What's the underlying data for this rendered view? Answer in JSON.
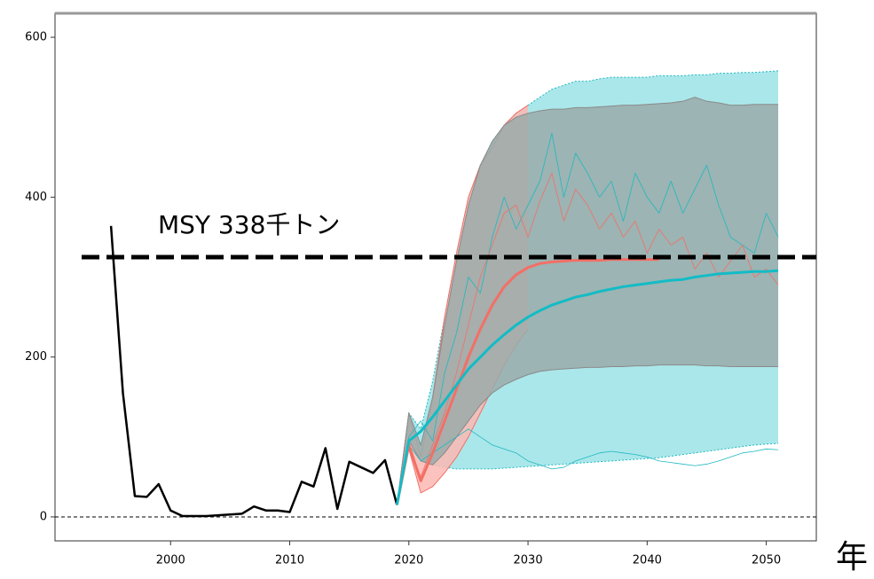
{
  "chart_data": {
    "type": "line",
    "annotation": "MSY 338千トン",
    "xlabel": "年",
    "xlim": [
      1990.3,
      2054.2
    ],
    "ylim": [
      -30,
      630
    ],
    "xticks": [
      2000,
      2010,
      2020,
      2030,
      2040,
      2050
    ],
    "yticks": [
      0,
      200,
      400,
      600
    ],
    "reference_line": 325,
    "zero_line": 0,
    "bands": [
      {
        "color": "#9be3e6",
        "edge": "#1fb8c0",
        "x": [
          2019,
          2020,
          2021,
          2022,
          2023,
          2024,
          2025,
          2026,
          2027,
          2028,
          2029,
          2030,
          2031,
          2032,
          2033,
          2034,
          2035,
          2036,
          2037,
          2038,
          2039,
          2040,
          2041,
          2042,
          2043,
          2044,
          2045,
          2046,
          2047,
          2048,
          2049,
          2050,
          2051
        ],
        "upper": [
          15,
          130,
          110,
          170,
          250,
          330,
          400,
          440,
          470,
          490,
          505,
          515,
          525,
          535,
          540,
          545,
          545,
          548,
          550,
          550,
          550,
          550,
          552,
          552,
          552,
          553,
          553,
          555,
          555,
          556,
          556,
          557,
          558
        ],
        "lower": [
          15,
          95,
          70,
          65,
          62,
          60,
          60,
          60,
          60,
          61,
          62,
          63,
          64,
          65,
          66,
          67,
          68,
          69,
          70,
          71,
          72,
          73,
          74,
          76,
          78,
          80,
          82,
          84,
          86,
          88,
          90,
          91,
          92
        ]
      },
      {
        "color": "#fbb8b3",
        "edge": "#f36f66",
        "x": [
          2019,
          2020,
          2021,
          2022,
          2023,
          2024,
          2025,
          2026,
          2027,
          2028,
          2029,
          2030
        ],
        "upper": [
          15,
          130,
          75,
          150,
          250,
          330,
          400,
          440,
          462,
          490,
          505,
          515
        ],
        "lower": [
          15,
          85,
          30,
          38,
          55,
          75,
          100,
          130,
          160,
          190,
          215,
          235
        ]
      },
      {
        "color": "#9aaaa9",
        "edge": "#8a8a8a",
        "x": [
          2019,
          2020,
          2021,
          2022,
          2023,
          2024,
          2025,
          2026,
          2027,
          2028,
          2029,
          2030,
          2031,
          2032,
          2033,
          2034,
          2035,
          2036,
          2037,
          2038,
          2039,
          2040,
          2041,
          2042,
          2043,
          2044,
          2045,
          2046,
          2047,
          2048,
          2049,
          2050,
          2051
        ],
        "upper": [
          15,
          130,
          90,
          150,
          240,
          320,
          390,
          440,
          470,
          490,
          500,
          505,
          508,
          510,
          510,
          512,
          512,
          513,
          514,
          515,
          515,
          516,
          517,
          518,
          520,
          525,
          520,
          518,
          515,
          515,
          516,
          516,
          516
        ],
        "lower": [
          15,
          95,
          70,
          65,
          80,
          100,
          120,
          140,
          155,
          165,
          172,
          178,
          182,
          184,
          185,
          186,
          187,
          187,
          188,
          188,
          189,
          189,
          190,
          190,
          190,
          190,
          189,
          189,
          188,
          188,
          188,
          188,
          188
        ]
      }
    ],
    "series": [
      {
        "color": "#1fb8c0",
        "width": 0.8,
        "x": [
          2019,
          2020,
          2021,
          2022,
          2023,
          2024,
          2025,
          2026,
          2027,
          2028,
          2029,
          2030,
          2031,
          2032,
          2033,
          2034,
          2035,
          2036,
          2037,
          2038,
          2039,
          2040,
          2041,
          2042,
          2043,
          2044,
          2045,
          2046,
          2047,
          2048,
          2049,
          2050,
          2051
        ],
        "values": [
          15,
          100,
          120,
          95,
          180,
          230,
          300,
          280,
          350,
          400,
          360,
          390,
          420,
          480,
          400,
          455,
          430,
          400,
          420,
          370,
          430,
          400,
          380,
          420,
          380,
          410,
          440,
          390,
          350,
          340,
          330,
          380,
          350
        ]
      },
      {
        "color": "#f36f66",
        "width": 0.8,
        "x": [
          2019,
          2020,
          2021,
          2022,
          2023,
          2024,
          2025,
          2026,
          2027,
          2028,
          2029,
          2030,
          2031,
          2032,
          2033,
          2034,
          2035,
          2036,
          2037,
          2038,
          2039,
          2040,
          2041,
          2042,
          2043,
          2044,
          2045,
          2046,
          2047,
          2048,
          2049,
          2050,
          2051
        ],
        "values": [
          15,
          90,
          50,
          90,
          130,
          180,
          240,
          300,
          340,
          380,
          390,
          350,
          395,
          430,
          370,
          410,
          390,
          360,
          380,
          350,
          370,
          330,
          360,
          340,
          350,
          310,
          330,
          300,
          320,
          340,
          300,
          310,
          290
        ]
      },
      {
        "color": "#1fb8c0",
        "width": 0.8,
        "x": [
          2019,
          2020,
          2021,
          2022,
          2023,
          2024,
          2025,
          2026,
          2027,
          2028,
          2029,
          2030,
          2031,
          2032,
          2033,
          2034,
          2035,
          2036,
          2037,
          2038,
          2039,
          2040,
          2041,
          2042,
          2043,
          2044,
          2045,
          2046,
          2047,
          2048,
          2049,
          2050,
          2051
        ],
        "values": [
          15,
          90,
          70,
          80,
          90,
          100,
          110,
          100,
          90,
          85,
          80,
          70,
          65,
          60,
          62,
          70,
          75,
          80,
          82,
          80,
          78,
          75,
          70,
          68,
          66,
          64,
          66,
          70,
          75,
          80,
          82,
          85,
          84
        ]
      },
      {
        "color": "#000000",
        "width": 2.5,
        "x": [
          1995,
          1996,
          1997,
          1998,
          1999,
          2000,
          2001,
          2002,
          2003,
          2004,
          2005,
          2006,
          2007,
          2008,
          2009,
          2010,
          2011,
          2012,
          2013,
          2014,
          2015,
          2016,
          2017,
          2018,
          2019
        ],
        "values": [
          364,
          155,
          26,
          25,
          41,
          8,
          1,
          1,
          1,
          2,
          3,
          4,
          13,
          8,
          8,
          6,
          44,
          38,
          86,
          10,
          69,
          62,
          55,
          71,
          15
        ]
      },
      {
        "color": "#f36f66",
        "width": 3,
        "x": [
          2019,
          2020,
          2021,
          2022,
          2023,
          2024,
          2025,
          2026,
          2027,
          2028,
          2029,
          2030,
          2031,
          2032,
          2033,
          2034,
          2035,
          2036,
          2037,
          2038,
          2039,
          2040,
          2041
        ],
        "values": [
          15,
          90,
          45,
          80,
          120,
          160,
          200,
          235,
          265,
          288,
          303,
          312,
          317,
          319,
          320,
          321,
          321,
          321,
          322,
          322,
          322,
          322,
          322
        ]
      },
      {
        "color": "#12bcc6",
        "width": 3,
        "x": [
          2019,
          2020,
          2021,
          2022,
          2023,
          2024,
          2025,
          2026,
          2027,
          2028,
          2029,
          2030,
          2031,
          2032,
          2033,
          2034,
          2035,
          2036,
          2037,
          2038,
          2039,
          2040,
          2041,
          2042,
          2043,
          2044,
          2045,
          2046,
          2047,
          2048,
          2049,
          2050,
          2051
        ],
        "values": [
          15,
          95,
          107,
          125,
          145,
          165,
          185,
          200,
          215,
          228,
          240,
          250,
          258,
          265,
          270,
          275,
          278,
          282,
          285,
          288,
          290,
          292,
          294,
          296,
          297,
          300,
          302,
          304,
          305,
          306,
          307,
          307,
          308
        ]
      }
    ]
  }
}
